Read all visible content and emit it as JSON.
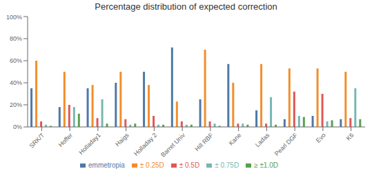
{
  "chart_data": {
    "type": "bar",
    "title": "Percentage distribution of expected correction",
    "categories": [
      "SRK/T",
      "Hoffer",
      "Holladay1",
      "Haigs",
      "Holladay 2",
      "Barret Univ",
      "Hill RBF",
      "Kane",
      "Ladas",
      "Pearl DGF",
      "Evo",
      "K6"
    ],
    "series": [
      {
        "name": "emmetropia",
        "color": "#4e79a7",
        "values": [
          35,
          18,
          35,
          40,
          50,
          72,
          25,
          57,
          15,
          7,
          10,
          7
        ]
      },
      {
        "name": "± 0.25D",
        "color": "#f28e2b",
        "values": [
          60,
          50,
          38,
          50,
          38,
          23,
          70,
          40,
          57,
          53,
          53,
          50
        ]
      },
      {
        "name": "± 0.5D",
        "color": "#e15759",
        "values": [
          5,
          20,
          8,
          7,
          10,
          5,
          5,
          3,
          3,
          32,
          30,
          8
        ]
      },
      {
        "name": "± 0.75D",
        "color": "#76b7b2",
        "values": [
          2,
          18,
          25,
          2,
          2,
          2,
          3,
          3,
          27,
          10,
          5,
          35
        ]
      },
      {
        "name": "≥ ±1.0D",
        "color": "#59a14f",
        "values": [
          1,
          12,
          3,
          3,
          2,
          2,
          1,
          2,
          2,
          9,
          6,
          7
        ]
      }
    ],
    "ylim": [
      0,
      100
    ],
    "yticks": [
      {
        "value": 0,
        "label": "0%"
      },
      {
        "value": 20,
        "label": "20%"
      },
      {
        "value": 40,
        "label": "40%"
      },
      {
        "value": 60,
        "label": "60%"
      },
      {
        "value": 80,
        "label": "80%"
      },
      {
        "value": 100,
        "label": "100%"
      }
    ],
    "grid": false,
    "legend": "bottom"
  }
}
